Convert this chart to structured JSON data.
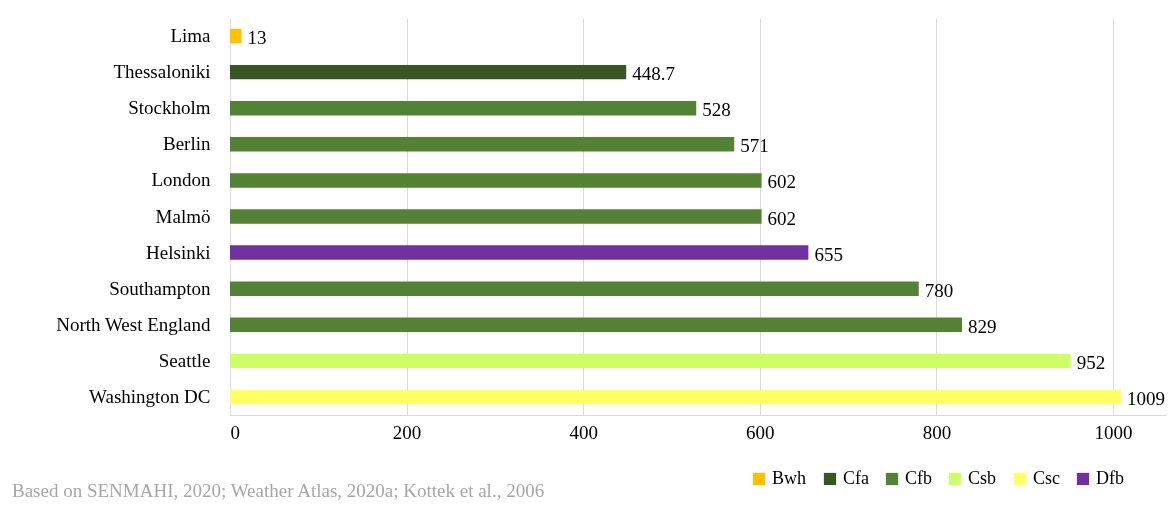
{
  "chart_data": {
    "type": "bar",
    "orientation": "horizontal",
    "categories": [
      "Lima",
      "Thessaloniki",
      "Stockholm",
      "Berlin",
      "London",
      "Malmö",
      "Helsinki",
      "Southampton",
      "North West England",
      "Seattle",
      "Washington DC"
    ],
    "series": [
      {
        "name": "Bwh",
        "color": "#ffc000",
        "values": [
          13,
          null,
          null,
          null,
          null,
          null,
          null,
          null,
          null,
          null,
          null
        ]
      },
      {
        "name": "Cfa",
        "color": "#375623",
        "values": [
          null,
          448.7,
          null,
          null,
          null,
          null,
          null,
          null,
          null,
          null,
          null
        ]
      },
      {
        "name": "Cfb",
        "color": "#548235",
        "values": [
          null,
          null,
          528,
          571,
          602,
          602,
          null,
          780,
          829,
          null,
          null
        ]
      },
      {
        "name": "Csb",
        "color": "#ccff66",
        "values": [
          null,
          null,
          null,
          null,
          null,
          null,
          null,
          null,
          null,
          952,
          null
        ]
      },
      {
        "name": "Csc",
        "color": "#ffff66",
        "values": [
          null,
          null,
          null,
          null,
          null,
          null,
          null,
          null,
          null,
          null,
          1009
        ]
      },
      {
        "name": "Dfb",
        "color": "#7030a0",
        "values": [
          null,
          null,
          null,
          null,
          null,
          null,
          655,
          null,
          null,
          null,
          null
        ]
      }
    ],
    "xlim": [
      0,
      1060
    ],
    "xticks": [
      0,
      200,
      400,
      600,
      800,
      1000
    ],
    "grid": "x",
    "legend": "bottom right",
    "data_labels": true,
    "annotations": [
      "Based on SENMAHI, 2020; Weather Atlas, 2020a; Kottek et al., 2006"
    ]
  }
}
